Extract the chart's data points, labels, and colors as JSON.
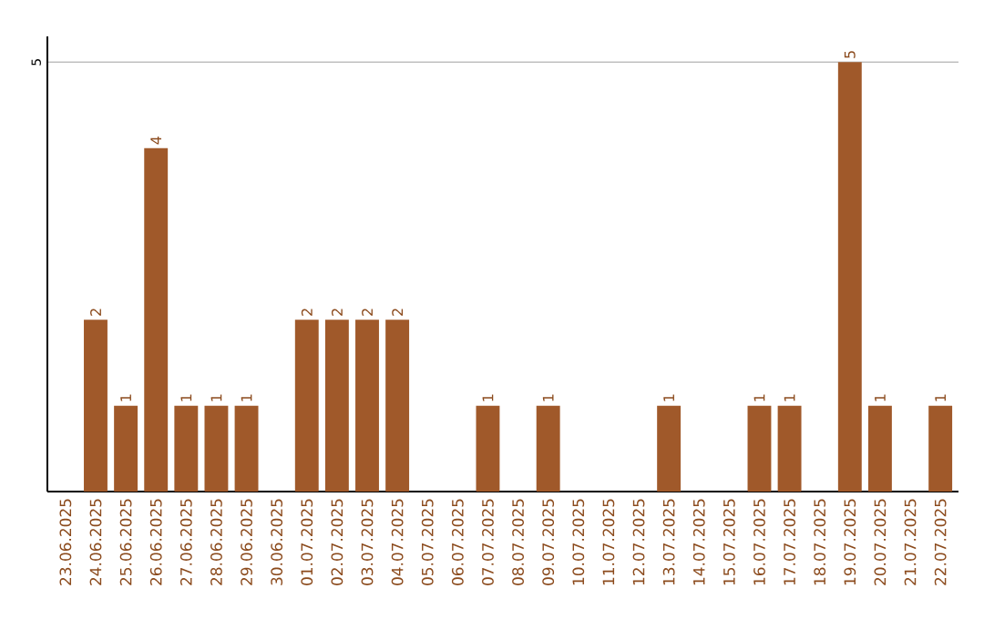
{
  "chart_data": {
    "type": "bar",
    "categories": [
      "23.06.2025",
      "24.06.2025",
      "25.06.2025",
      "26.06.2025",
      "27.06.2025",
      "28.06.2025",
      "29.06.2025",
      "30.06.2025",
      "01.07.2025",
      "02.07.2025",
      "03.07.2025",
      "04.07.2025",
      "05.07.2025",
      "06.07.2025",
      "07.07.2025",
      "08.07.2025",
      "09.07.2025",
      "10.07.2025",
      "11.07.2025",
      "12.07.2025",
      "13.07.2025",
      "14.07.2025",
      "15.07.2025",
      "16.07.2025",
      "17.07.2025",
      "18.07.2025",
      "19.07.2025",
      "20.07.2025",
      "21.07.2025",
      "22.07.2025"
    ],
    "values": [
      0,
      2,
      1,
      4,
      1,
      1,
      1,
      0,
      2,
      2,
      2,
      2,
      0,
      0,
      1,
      0,
      1,
      0,
      0,
      0,
      1,
      0,
      0,
      1,
      1,
      0,
      5,
      1,
      0,
      1
    ],
    "value_labels": [
      null,
      "2",
      "1",
      "4",
      "1",
      "1",
      "1",
      null,
      "2",
      "2",
      "2",
      "2",
      null,
      null,
      "1",
      null,
      "1",
      null,
      null,
      null,
      "1",
      null,
      null,
      "1",
      "1",
      null,
      "5",
      "1",
      null,
      "1"
    ],
    "color": "#a0592a",
    "ylim": [
      0,
      5.3
    ],
    "yticks": [
      5
    ],
    "grid": "y"
  }
}
